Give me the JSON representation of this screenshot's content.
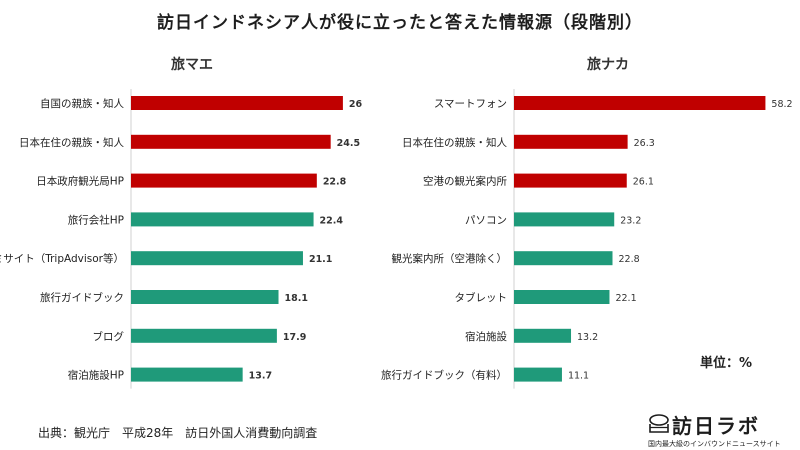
{
  "title": "訪日インドネシア人が役に立ったと答えた情報源（段階別）",
  "unit_label": "単位：%",
  "source": "出典：観光庁　平成28年　訪日外国人消費動向調査",
  "logo": {
    "name": "訪日ラボ",
    "tagline": "国内最大級のインバウンドニュースサイト"
  },
  "colors": {
    "highlight": "#c00000",
    "normal": "#1f9a7a"
  },
  "chart_data": [
    {
      "type": "bar",
      "orientation": "horizontal",
      "title": "旅マエ",
      "categories": [
        "自国の親族・知人",
        "日本在住の親族・知人",
        "日本政府観光局HP",
        "旅行会社HP",
        "口コミサイト（TripAdvisor等）",
        "旅行ガイドブック",
        "ブログ",
        "宿泊施設HP"
      ],
      "values": [
        26,
        24.5,
        22.8,
        22.4,
        21.1,
        18.1,
        17.9,
        13.7
      ],
      "value_labels": [
        "26",
        "24.5",
        "22.8",
        "22.4",
        "21.1",
        "18.1",
        "17.9",
        "13.7"
      ],
      "highlighted_top": 3
    },
    {
      "type": "bar",
      "orientation": "horizontal",
      "title": "旅ナカ",
      "categories": [
        "スマートフォン",
        "日本在住の親族・知人",
        "空港の観光案内所",
        "パソコン",
        "観光案内所（空港除く）",
        "タブレット",
        "宿泊施設",
        "旅行ガイドブック（有料）"
      ],
      "values": [
        58.2,
        26.3,
        26.1,
        23.2,
        22.8,
        22.1,
        13.2,
        11.1
      ],
      "value_labels": [
        "58.2",
        "26.3",
        "26.1",
        "23.2",
        "22.8",
        "22.1",
        "13.2",
        "11.1"
      ],
      "highlighted_top": 3
    }
  ]
}
